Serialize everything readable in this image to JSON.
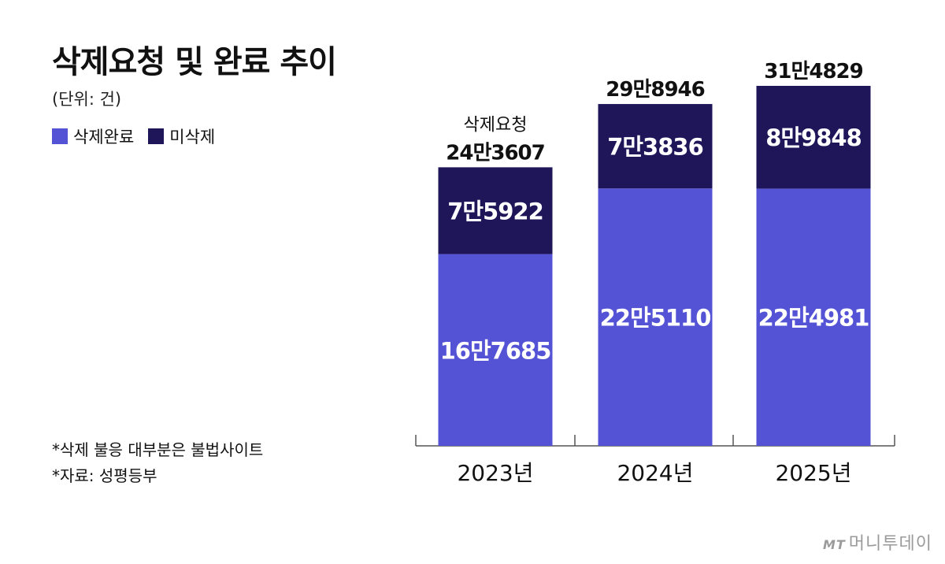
{
  "chart_data": {
    "type": "bar",
    "stacked": true,
    "title": "삭제요청 및 완료 추이",
    "unit_note": "(단위: 건)",
    "categories": [
      "2023년",
      "2024년",
      "2025년"
    ],
    "series": [
      {
        "name": "삭제완료",
        "values": [
          167685,
          225110,
          224981
        ],
        "labels": [
          "16만7685",
          "22만5110",
          "22만4981"
        ],
        "color": "#5453d6"
      },
      {
        "name": "미삭제",
        "values": [
          75922,
          73836,
          89848
        ],
        "labels": [
          "7만5922",
          "7만3836",
          "8만9848"
        ],
        "color": "#1e1659"
      }
    ],
    "totals": {
      "values": [
        243607,
        298946,
        314829
      ],
      "labels": [
        "24만3607",
        "29만8946",
        "31만4829"
      ]
    },
    "total_caption": "삭제요청",
    "ylim": [
      0,
      314829
    ],
    "grid": false,
    "legend_position": "top-left",
    "notes": [
      "*삭제 불응 대부분은 불법사이트",
      "*자료: 성평등부"
    ]
  },
  "watermark": {
    "mark": "MT",
    "text": "머니투데이"
  }
}
